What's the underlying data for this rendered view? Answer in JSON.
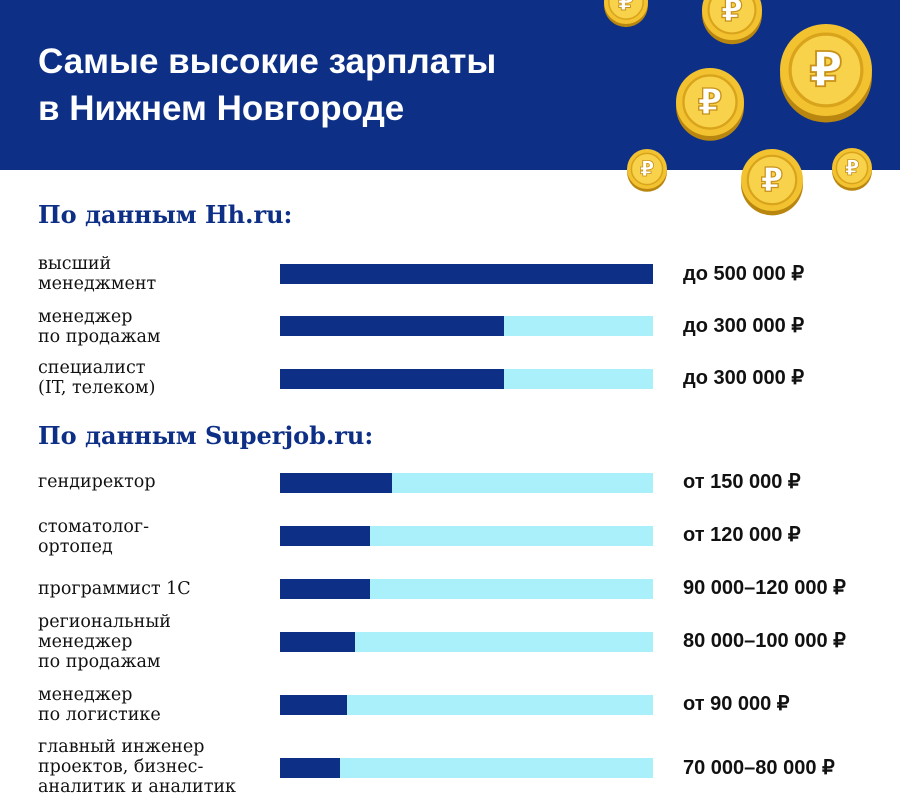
{
  "header": {
    "title_line1": "Самые высокие зарплаты",
    "title_line2": "в Нижнем Новгороде",
    "coin_symbol": "₽",
    "coin_icon": "ruble-coin-icon"
  },
  "colors": {
    "header_bg": "#0d2f86",
    "bar_fill": "#0d2f86",
    "bar_track": "#a9f0fb",
    "coin_gold": "#f2c230"
  },
  "chart_data": [
    {
      "type": "bar",
      "orientation": "horizontal",
      "title": "По данным Hh.ru:",
      "categories": [
        [
          "высший",
          "менеджмент"
        ],
        [
          "менеджер",
          "по продажам"
        ],
        [
          "специалист",
          "(IT, телеком)"
        ]
      ],
      "value_labels": [
        "до 500 000 ₽",
        "до 300 000 ₽",
        "до 300 000 ₽"
      ],
      "values": [
        500000,
        300000,
        300000
      ],
      "xlim": [
        0,
        500000
      ]
    },
    {
      "type": "bar",
      "orientation": "horizontal",
      "title": "По данным Superjob.ru:",
      "categories": [
        [
          "гендиректор"
        ],
        [
          "стоматолог-",
          "ортопед"
        ],
        [
          "программист 1С"
        ],
        [
          "региональный",
          "менеджер",
          "по продажам"
        ],
        [
          "менеджер",
          "по логистике"
        ],
        [
          "главный инженер",
          "проектов, бизнес-",
          "аналитик и аналитик"
        ]
      ],
      "value_labels": [
        "от 150 000 ₽",
        "от 120 000 ₽",
        "90 000–120 000 ₽",
        "80 000–100 000 ₽",
        "от 90 000 ₽",
        "70 000–80 000 ₽"
      ],
      "values": [
        150000,
        120000,
        120000,
        100000,
        90000,
        80000
      ],
      "xlim": [
        0,
        500000
      ]
    }
  ]
}
